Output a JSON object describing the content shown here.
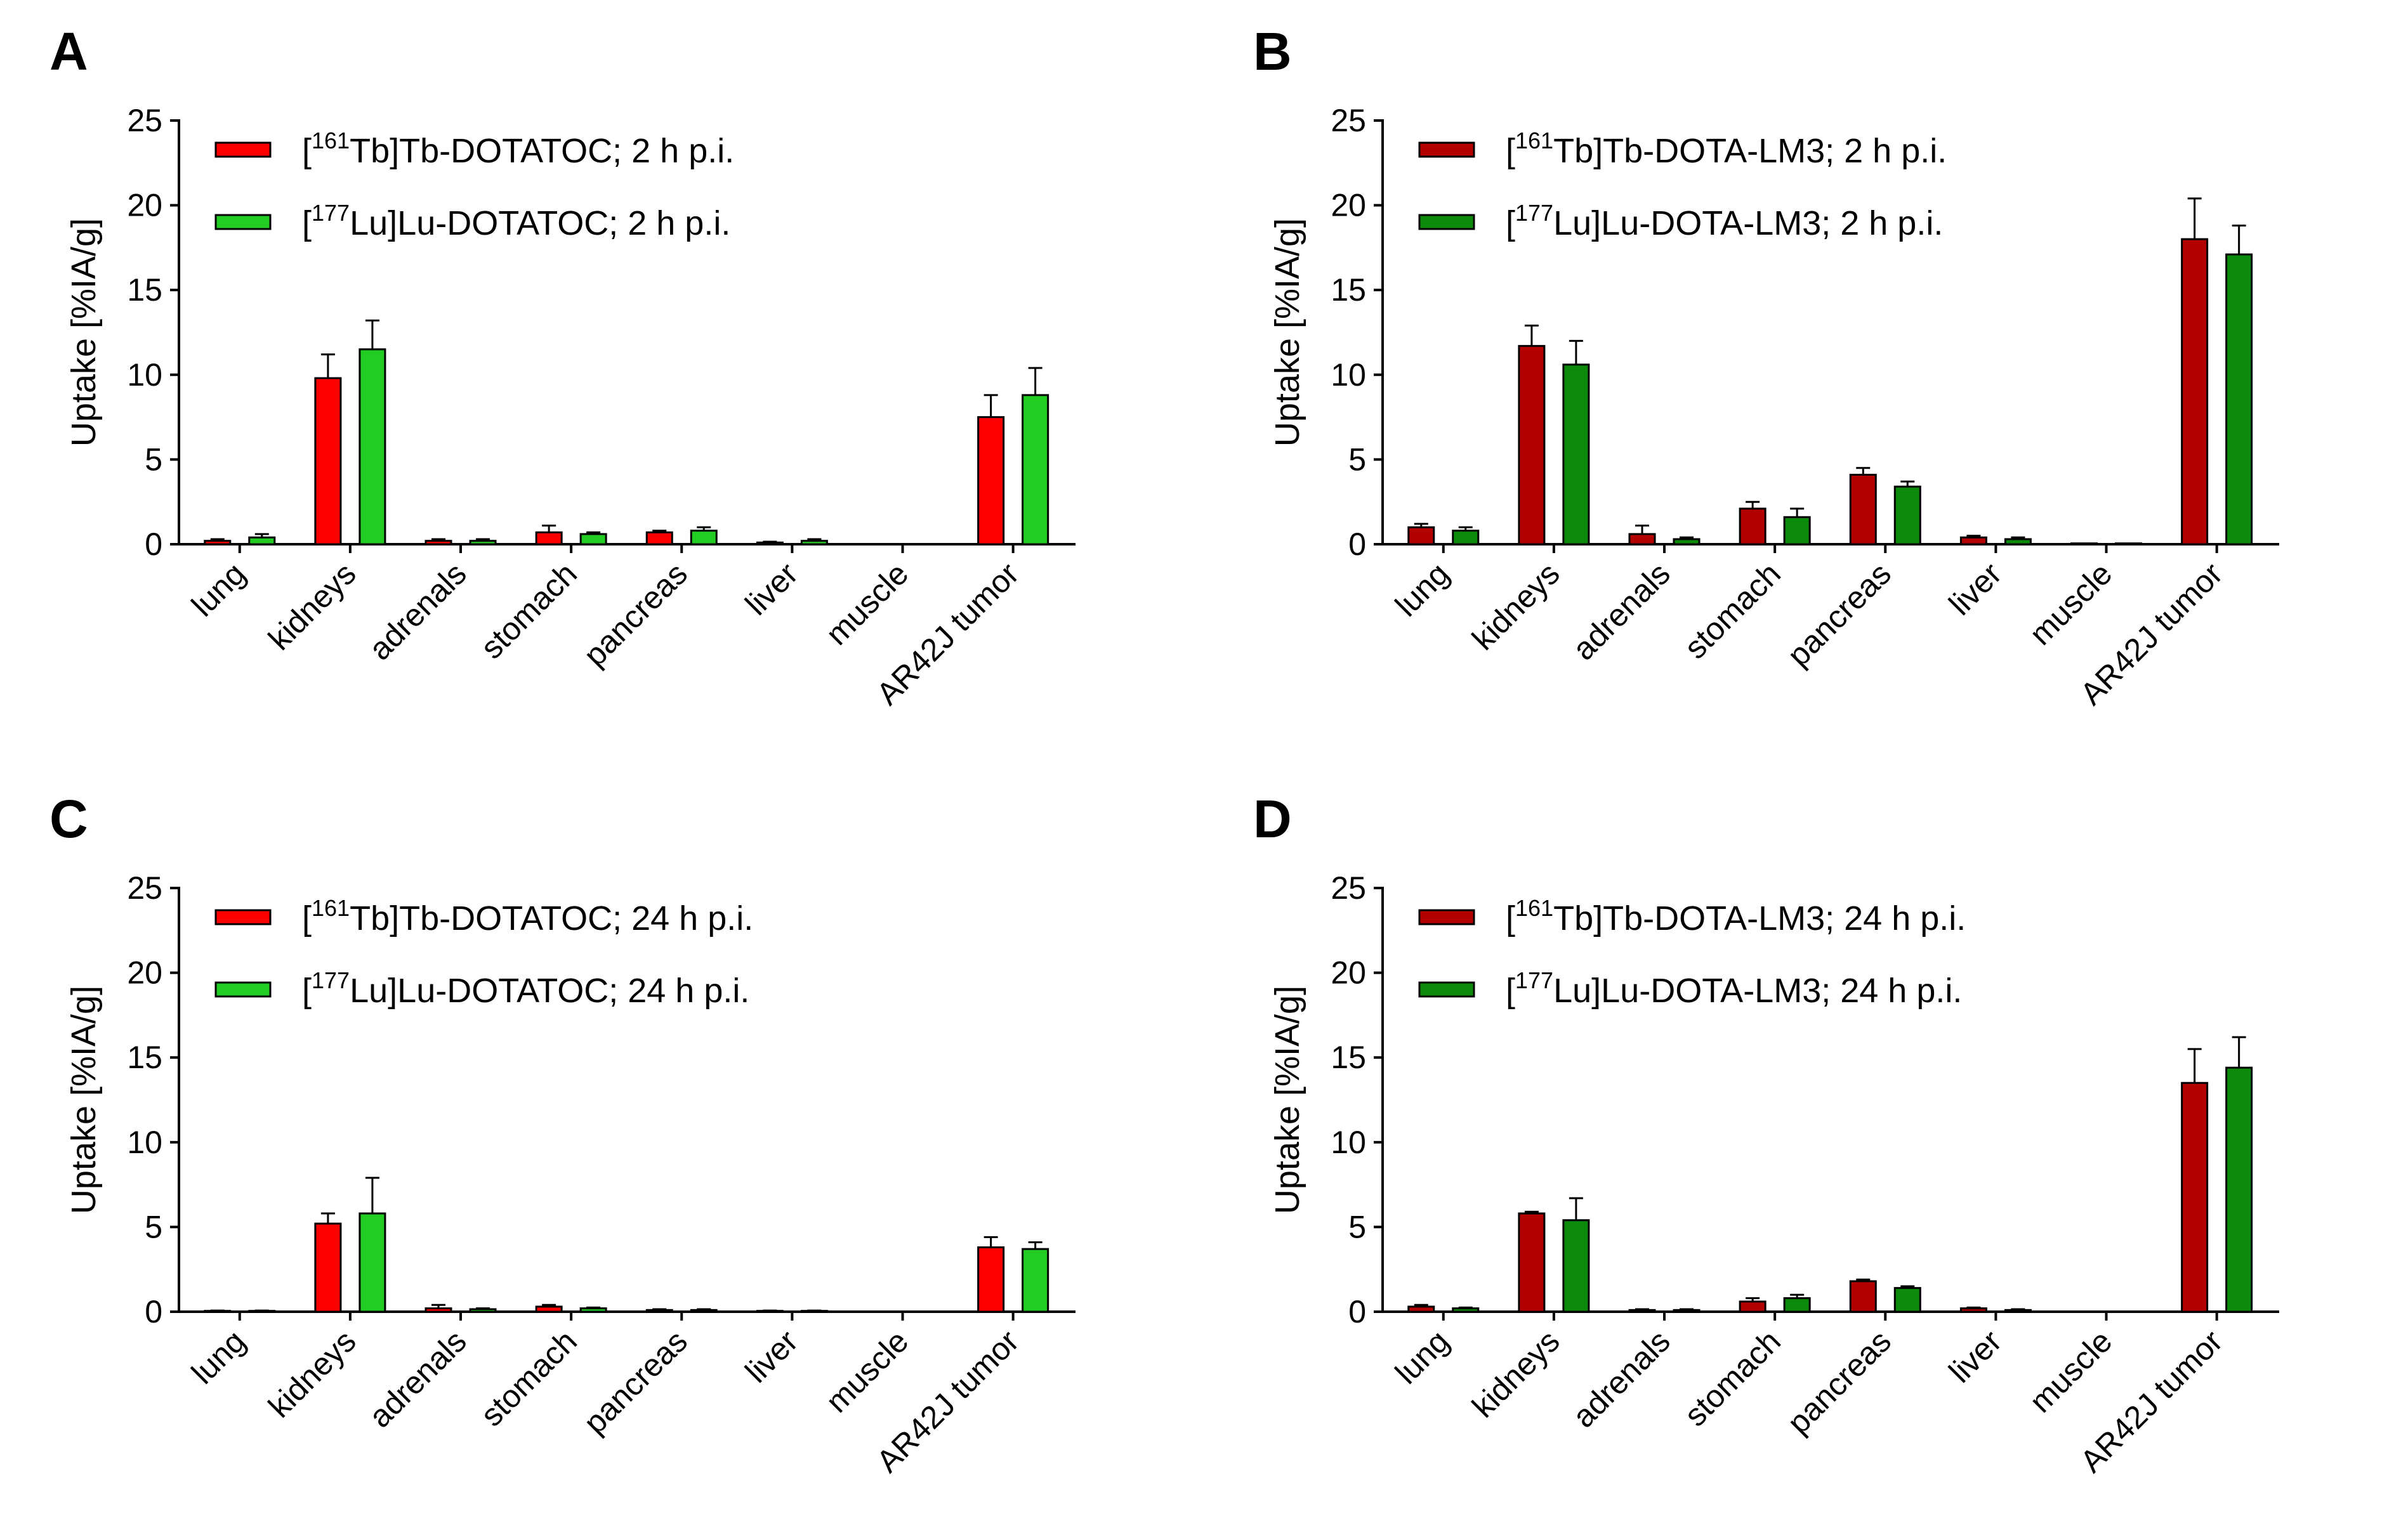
{
  "chart_data": [
    {
      "panel": "A",
      "type": "bar",
      "ylabel": "Uptake [%IA/g]",
      "ylim": [
        0,
        25
      ],
      "yticks": [
        0,
        5,
        10,
        15,
        20,
        25
      ],
      "categories": [
        "lung",
        "kidneys",
        "adrenals",
        "stomach",
        "pancreas",
        "liver",
        "muscle",
        "AR42J tumor"
      ],
      "series": [
        {
          "name": "[161Tb]Tb-DOTATOC; 2 h p.i.",
          "sup": "161",
          "prefix": "[",
          "suffix": "Tb]Tb-DOTATOC; 2 h p.i.",
          "color": "#ff0000",
          "values": [
            0.2,
            9.8,
            0.2,
            0.7,
            0.7,
            0.1,
            0.0,
            7.5
          ],
          "errors": [
            0.1,
            1.4,
            0.1,
            0.4,
            0.1,
            0.05,
            0.0,
            1.3
          ]
        },
        {
          "name": "[177Lu]Lu-DOTATOC; 2 h p.i.",
          "sup": "177",
          "prefix": "[",
          "suffix": "Lu]Lu-DOTATOC; 2 h p.i.",
          "color": "#22cc22",
          "values": [
            0.4,
            11.5,
            0.2,
            0.6,
            0.8,
            0.2,
            0.0,
            8.8
          ],
          "errors": [
            0.2,
            1.7,
            0.1,
            0.1,
            0.2,
            0.1,
            0.0,
            1.6
          ]
        }
      ]
    },
    {
      "panel": "B",
      "type": "bar",
      "ylabel": "Uptake [%IA/g]",
      "ylim": [
        0,
        25
      ],
      "yticks": [
        0,
        5,
        10,
        15,
        20,
        25
      ],
      "categories": [
        "lung",
        "kidneys",
        "adrenals",
        "stomach",
        "pancreas",
        "liver",
        "muscle",
        "AR42J tumor"
      ],
      "series": [
        {
          "name": "[161Tb]Tb-DOTA-LM3; 2 h p.i.",
          "sup": "161",
          "prefix": "[",
          "suffix": "Tb]Tb-DOTA-LM3; 2 h p.i.",
          "color": "#b30000",
          "values": [
            1.0,
            11.7,
            0.6,
            2.1,
            4.1,
            0.4,
            0.05,
            18.0
          ],
          "errors": [
            0.2,
            1.2,
            0.5,
            0.4,
            0.4,
            0.1,
            0.0,
            2.4
          ]
        },
        {
          "name": "[177Lu]Lu-DOTA-LM3; 2 h p.i.",
          "sup": "177",
          "prefix": "[",
          "suffix": "Lu]Lu-DOTA-LM3; 2 h p.i.",
          "color": "#0b8a0b",
          "values": [
            0.8,
            10.6,
            0.3,
            1.6,
            3.4,
            0.3,
            0.05,
            17.1
          ],
          "errors": [
            0.2,
            1.4,
            0.1,
            0.5,
            0.3,
            0.1,
            0.0,
            1.7
          ]
        }
      ]
    },
    {
      "panel": "C",
      "type": "bar",
      "ylabel": "Uptake [%IA/g]",
      "ylim": [
        0,
        25
      ],
      "yticks": [
        0,
        5,
        10,
        15,
        20,
        25
      ],
      "categories": [
        "lung",
        "kidneys",
        "adrenals",
        "stomach",
        "pancreas",
        "liver",
        "muscle",
        "AR42J tumor"
      ],
      "series": [
        {
          "name": "[161Tb]Tb-DOTATOC; 24 h p.i.",
          "sup": "161",
          "prefix": "[",
          "suffix": "Tb]Tb-DOTATOC; 24 h p.i.",
          "color": "#ff0000",
          "values": [
            0.05,
            5.2,
            0.2,
            0.3,
            0.1,
            0.05,
            0.0,
            3.8
          ],
          "errors": [
            0.02,
            0.6,
            0.2,
            0.1,
            0.05,
            0.02,
            0.0,
            0.6
          ]
        },
        {
          "name": "[177Lu]Lu-DOTATOC; 24 h p.i.",
          "sup": "177",
          "prefix": "[",
          "suffix": "Lu]Lu-DOTATOC; 24 h p.i.",
          "color": "#22cc22",
          "values": [
            0.05,
            5.8,
            0.15,
            0.2,
            0.1,
            0.05,
            0.0,
            3.7
          ],
          "errors": [
            0.02,
            2.1,
            0.05,
            0.05,
            0.05,
            0.02,
            0.0,
            0.4
          ]
        }
      ]
    },
    {
      "panel": "D",
      "type": "bar",
      "ylabel": "Uptake [%IA/g]",
      "ylim": [
        0,
        25
      ],
      "yticks": [
        0,
        5,
        10,
        15,
        20,
        25
      ],
      "categories": [
        "lung",
        "kidneys",
        "adrenals",
        "stomach",
        "pancreas",
        "liver",
        "muscle",
        "AR42J tumor"
      ],
      "series": [
        {
          "name": "[161Tb]Tb-DOTA-LM3; 24 h p.i.",
          "sup": "161",
          "prefix": "[",
          "suffix": "Tb]Tb-DOTA-LM3; 24 h p.i.",
          "color": "#b30000",
          "values": [
            0.3,
            5.8,
            0.1,
            0.6,
            1.8,
            0.2,
            0.0,
            13.5
          ],
          "errors": [
            0.1,
            0.1,
            0.05,
            0.2,
            0.1,
            0.05,
            0.0,
            2.0
          ]
        },
        {
          "name": "[177Lu]Lu-DOTA-LM3; 24 h p.i.",
          "sup": "177",
          "prefix": "[",
          "suffix": "Lu]Lu-DOTA-LM3; 24 h p.i.",
          "color": "#0b8a0b",
          "values": [
            0.2,
            5.4,
            0.1,
            0.8,
            1.4,
            0.1,
            0.0,
            14.4
          ],
          "errors": [
            0.05,
            1.3,
            0.05,
            0.2,
            0.1,
            0.05,
            0.0,
            1.8
          ]
        }
      ]
    }
  ]
}
